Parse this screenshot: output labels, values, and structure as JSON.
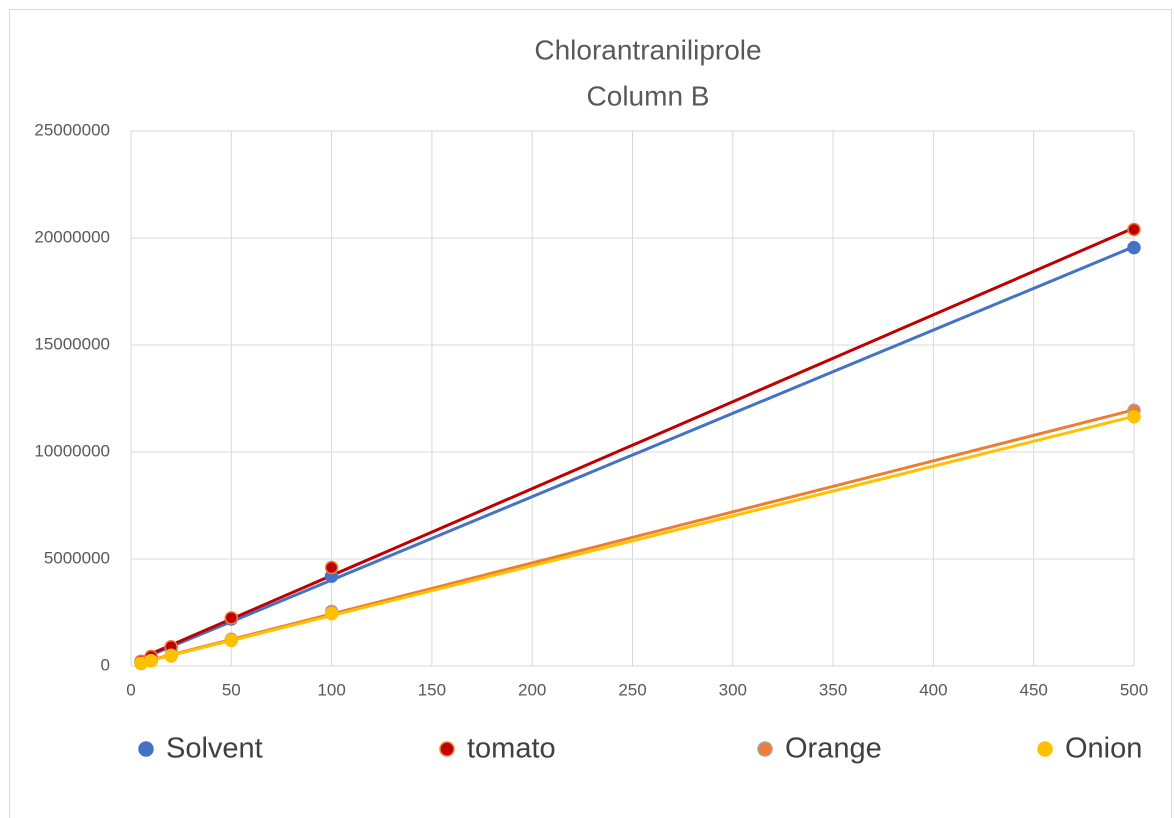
{
  "chart_data": {
    "type": "scatter",
    "title": "Chlorantraniliprole",
    "subtitle": "Column B",
    "x": [
      5,
      10,
      20,
      50,
      100,
      500
    ],
    "series": [
      {
        "name": "Solvent",
        "color": "#4472c4",
        "values": [
          200000,
          420000,
          850000,
          2200000,
          4200000,
          19550000
        ]
      },
      {
        "name": "tomato",
        "color": "#c00000",
        "values": [
          220000,
          450000,
          900000,
          2250000,
          4600000,
          20400000
        ]
      },
      {
        "name": "Orange",
        "color": "#ed7d31",
        "values": [
          120000,
          250000,
          500000,
          1250000,
          2550000,
          11950000
        ]
      },
      {
        "name": "Onion",
        "color": "#ffc000",
        "values": [
          120000,
          240000,
          470000,
          1200000,
          2450000,
          11650000
        ]
      }
    ],
    "xlim": [
      0,
      500
    ],
    "xticks": [
      0,
      50,
      100,
      150,
      200,
      250,
      300,
      350,
      400,
      450,
      500
    ],
    "ylim": [
      0,
      25000000
    ],
    "yticks": [
      0,
      5000000,
      10000000,
      15000000,
      20000000,
      25000000
    ],
    "grid": true,
    "trendline": true,
    "legend": "bottom"
  }
}
